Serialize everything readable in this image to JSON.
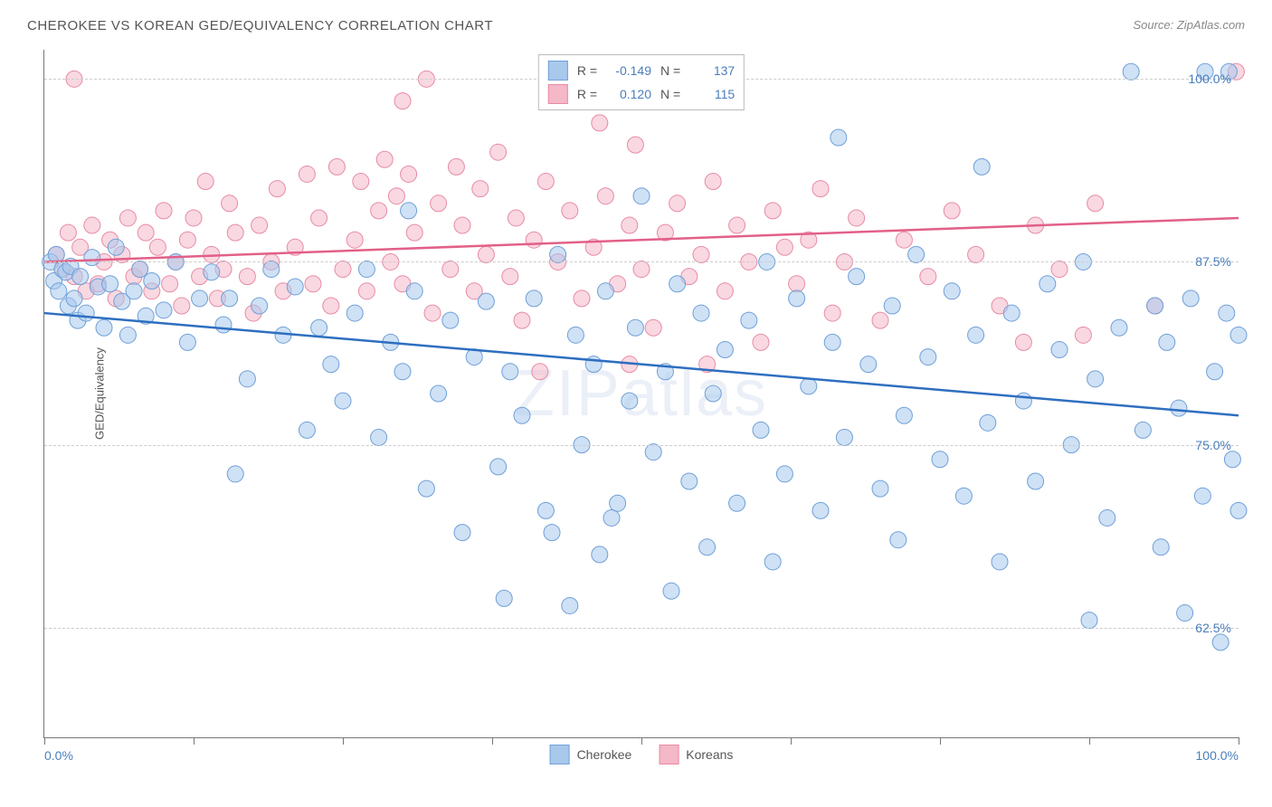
{
  "title": "CHEROKEE VS KOREAN GED/EQUIVALENCY CORRELATION CHART",
  "source": "Source: ZipAtlas.com",
  "ylabel": "GED/Equivalency",
  "watermark_a": "ZIP",
  "watermark_b": "atlas",
  "chart": {
    "type": "scatter",
    "background_color": "#ffffff",
    "grid_color": "#cccccc",
    "axis_color": "#777777",
    "xlim": [
      0,
      100
    ],
    "ylim": [
      55,
      102
    ],
    "x_ticks": [
      0,
      12.5,
      25,
      37.5,
      50,
      62.5,
      75,
      87.5,
      100
    ],
    "x_tick_labels": {
      "0": "0.0%",
      "100": "100.0%"
    },
    "y_gridlines": [
      62.5,
      75.0,
      87.5,
      100.0
    ],
    "y_tick_labels": [
      "62.5%",
      "75.0%",
      "87.5%",
      "100.0%"
    ],
    "marker_radius": 9,
    "marker_opacity": 0.55,
    "line_width": 2.5,
    "series": [
      {
        "name": "Cherokee",
        "color_fill": "#a8c8ec",
        "color_stroke": "#6fa0d8",
        "line_color": "#2e6fc0",
        "R": "-0.149",
        "N": "137",
        "trend": {
          "y_at_x0": 84.0,
          "y_at_x100": 77.0
        },
        "points": [
          [
            0.5,
            87.5
          ],
          [
            0.8,
            86.2
          ],
          [
            1.0,
            88.0
          ],
          [
            1.2,
            85.5
          ],
          [
            1.5,
            87.0
          ],
          [
            1.8,
            86.8
          ],
          [
            2.0,
            84.5
          ],
          [
            2.2,
            87.2
          ],
          [
            2.5,
            85.0
          ],
          [
            2.8,
            83.5
          ],
          [
            3.0,
            86.5
          ],
          [
            3.5,
            84.0
          ],
          [
            4.0,
            87.8
          ],
          [
            4.5,
            85.8
          ],
          [
            5.0,
            83.0
          ],
          [
            5.5,
            86.0
          ],
          [
            6.0,
            88.5
          ],
          [
            6.5,
            84.8
          ],
          [
            7.0,
            82.5
          ],
          [
            7.5,
            85.5
          ],
          [
            8.0,
            87.0
          ],
          [
            8.5,
            83.8
          ],
          [
            9.0,
            86.2
          ],
          [
            10.0,
            84.2
          ],
          [
            11.0,
            87.5
          ],
          [
            12.0,
            82.0
          ],
          [
            13.0,
            85.0
          ],
          [
            14.0,
            86.8
          ],
          [
            15.0,
            83.2
          ],
          [
            16.0,
            73.0
          ],
          [
            17.0,
            79.5
          ],
          [
            18.0,
            84.5
          ],
          [
            19.0,
            87.0
          ],
          [
            20.0,
            82.5
          ],
          [
            21.0,
            85.8
          ],
          [
            22.0,
            76.0
          ],
          [
            23.0,
            83.0
          ],
          [
            24.0,
            80.5
          ],
          [
            25.0,
            78.0
          ],
          [
            26.0,
            84.0
          ],
          [
            27.0,
            87.0
          ],
          [
            28.0,
            75.5
          ],
          [
            29.0,
            82.0
          ],
          [
            30.0,
            80.0
          ],
          [
            30.5,
            91.0
          ],
          [
            31.0,
            85.5
          ],
          [
            32.0,
            72.0
          ],
          [
            33.0,
            78.5
          ],
          [
            34.0,
            83.5
          ],
          [
            35.0,
            69.0
          ],
          [
            36.0,
            81.0
          ],
          [
            37.0,
            84.8
          ],
          [
            38.0,
            73.5
          ],
          [
            39.0,
            80.0
          ],
          [
            40.0,
            77.0
          ],
          [
            41.0,
            85.0
          ],
          [
            42.0,
            70.5
          ],
          [
            42.5,
            69.0
          ],
          [
            43.0,
            88.0
          ],
          [
            44.0,
            64.0
          ],
          [
            44.5,
            82.5
          ],
          [
            45.0,
            75.0
          ],
          [
            46.0,
            80.5
          ],
          [
            46.5,
            67.5
          ],
          [
            47.0,
            85.5
          ],
          [
            47.5,
            70.0
          ],
          [
            48.0,
            71.0
          ],
          [
            49.0,
            78.0
          ],
          [
            49.5,
            83.0
          ],
          [
            50.0,
            92.0
          ],
          [
            50.5,
            100.0
          ],
          [
            51.0,
            74.5
          ],
          [
            52.0,
            80.0
          ],
          [
            52.5,
            65.0
          ],
          [
            53.0,
            86.0
          ],
          [
            54.0,
            72.5
          ],
          [
            55.0,
            84.0
          ],
          [
            55.5,
            68.0
          ],
          [
            56.0,
            78.5
          ],
          [
            57.0,
            81.5
          ],
          [
            58.0,
            71.0
          ],
          [
            59.0,
            83.5
          ],
          [
            60.0,
            76.0
          ],
          [
            60.5,
            87.5
          ],
          [
            61.0,
            67.0
          ],
          [
            62.0,
            73.0
          ],
          [
            63.0,
            85.0
          ],
          [
            64.0,
            79.0
          ],
          [
            65.0,
            70.5
          ],
          [
            66.0,
            82.0
          ],
          [
            66.5,
            96.0
          ],
          [
            67.0,
            75.5
          ],
          [
            68.0,
            86.5
          ],
          [
            69.0,
            80.5
          ],
          [
            70.0,
            72.0
          ],
          [
            71.0,
            84.5
          ],
          [
            71.5,
            68.5
          ],
          [
            72.0,
            77.0
          ],
          [
            73.0,
            88.0
          ],
          [
            74.0,
            81.0
          ],
          [
            75.0,
            74.0
          ],
          [
            76.0,
            85.5
          ],
          [
            77.0,
            71.5
          ],
          [
            78.0,
            82.5
          ],
          [
            78.5,
            94.0
          ],
          [
            79.0,
            76.5
          ],
          [
            80.0,
            67.0
          ],
          [
            81.0,
            84.0
          ],
          [
            82.0,
            78.0
          ],
          [
            83.0,
            72.5
          ],
          [
            84.0,
            86.0
          ],
          [
            85.0,
            81.5
          ],
          [
            86.0,
            75.0
          ],
          [
            87.0,
            87.5
          ],
          [
            87.5,
            63.0
          ],
          [
            88.0,
            79.5
          ],
          [
            89.0,
            70.0
          ],
          [
            90.0,
            83.0
          ],
          [
            91.0,
            100.5
          ],
          [
            92.0,
            76.0
          ],
          [
            93.0,
            84.5
          ],
          [
            93.5,
            68.0
          ],
          [
            94.0,
            82.0
          ],
          [
            95.0,
            77.5
          ],
          [
            95.5,
            63.5
          ],
          [
            96.0,
            85.0
          ],
          [
            97.0,
            71.5
          ],
          [
            97.2,
            100.5
          ],
          [
            98.0,
            80.0
          ],
          [
            98.5,
            61.5
          ],
          [
            99.0,
            84.0
          ],
          [
            99.2,
            100.5
          ],
          [
            99.5,
            74.0
          ],
          [
            100.0,
            82.5
          ],
          [
            100.0,
            70.5
          ],
          [
            15.5,
            85.0
          ],
          [
            38.5,
            64.5
          ]
        ]
      },
      {
        "name": "Koreans",
        "color_fill": "#f4b8c8",
        "color_stroke": "#e88ba5",
        "line_color": "#e26088",
        "R": "0.120",
        "N": "115",
        "trend": {
          "y_at_x0": 87.5,
          "y_at_x100": 90.5
        },
        "points": [
          [
            1.0,
            88.0
          ],
          [
            1.5,
            87.0
          ],
          [
            2.0,
            89.5
          ],
          [
            2.5,
            86.5
          ],
          [
            3.0,
            88.5
          ],
          [
            3.5,
            85.5
          ],
          [
            4.0,
            90.0
          ],
          [
            4.5,
            86.0
          ],
          [
            5.0,
            87.5
          ],
          [
            5.5,
            89.0
          ],
          [
            6.0,
            85.0
          ],
          [
            6.5,
            88.0
          ],
          [
            7.0,
            90.5
          ],
          [
            7.5,
            86.5
          ],
          [
            8.0,
            87.0
          ],
          [
            8.5,
            89.5
          ],
          [
            9.0,
            85.5
          ],
          [
            9.5,
            88.5
          ],
          [
            10.0,
            91.0
          ],
          [
            10.5,
            86.0
          ],
          [
            11.0,
            87.5
          ],
          [
            11.5,
            84.5
          ],
          [
            12.0,
            89.0
          ],
          [
            12.5,
            90.5
          ],
          [
            13.0,
            86.5
          ],
          [
            13.5,
            93.0
          ],
          [
            14.0,
            88.0
          ],
          [
            14.5,
            85.0
          ],
          [
            15.0,
            87.0
          ],
          [
            15.5,
            91.5
          ],
          [
            16.0,
            89.5
          ],
          [
            17.0,
            86.5
          ],
          [
            17.5,
            84.0
          ],
          [
            18.0,
            90.0
          ],
          [
            19.0,
            87.5
          ],
          [
            19.5,
            92.5
          ],
          [
            20.0,
            85.5
          ],
          [
            21.0,
            88.5
          ],
          [
            22.0,
            93.5
          ],
          [
            22.5,
            86.0
          ],
          [
            23.0,
            90.5
          ],
          [
            24.0,
            84.5
          ],
          [
            24.5,
            94.0
          ],
          [
            25.0,
            87.0
          ],
          [
            26.0,
            89.0
          ],
          [
            26.5,
            93.0
          ],
          [
            27.0,
            85.5
          ],
          [
            28.0,
            91.0
          ],
          [
            28.5,
            94.5
          ],
          [
            29.0,
            87.5
          ],
          [
            29.5,
            92.0
          ],
          [
            30.0,
            86.0
          ],
          [
            30.5,
            93.5
          ],
          [
            31.0,
            89.5
          ],
          [
            32.0,
            100.0
          ],
          [
            32.5,
            84.0
          ],
          [
            33.0,
            91.5
          ],
          [
            34.0,
            87.0
          ],
          [
            34.5,
            94.0
          ],
          [
            35.0,
            90.0
          ],
          [
            36.0,
            85.5
          ],
          [
            36.5,
            92.5
          ],
          [
            37.0,
            88.0
          ],
          [
            38.0,
            95.0
          ],
          [
            39.0,
            86.5
          ],
          [
            39.5,
            90.5
          ],
          [
            40.0,
            83.5
          ],
          [
            41.0,
            89.0
          ],
          [
            42.0,
            93.0
          ],
          [
            43.0,
            87.5
          ],
          [
            44.0,
            91.0
          ],
          [
            45.0,
            85.0
          ],
          [
            46.0,
            88.5
          ],
          [
            46.5,
            97.0
          ],
          [
            47.0,
            92.0
          ],
          [
            48.0,
            86.0
          ],
          [
            49.0,
            90.0
          ],
          [
            49.5,
            95.5
          ],
          [
            50.0,
            87.0
          ],
          [
            51.0,
            83.0
          ],
          [
            52.0,
            89.5
          ],
          [
            53.0,
            91.5
          ],
          [
            54.0,
            86.5
          ],
          [
            55.0,
            88.0
          ],
          [
            55.5,
            80.5
          ],
          [
            56.0,
            93.0
          ],
          [
            57.0,
            85.5
          ],
          [
            58.0,
            90.0
          ],
          [
            59.0,
            87.5
          ],
          [
            60.0,
            82.0
          ],
          [
            61.0,
            91.0
          ],
          [
            62.0,
            88.5
          ],
          [
            63.0,
            86.0
          ],
          [
            64.0,
            89.0
          ],
          [
            65.0,
            92.5
          ],
          [
            66.0,
            84.0
          ],
          [
            67.0,
            87.5
          ],
          [
            68.0,
            90.5
          ],
          [
            70.0,
            83.5
          ],
          [
            72.0,
            89.0
          ],
          [
            74.0,
            86.5
          ],
          [
            76.0,
            91.0
          ],
          [
            78.0,
            88.0
          ],
          [
            80.0,
            84.5
          ],
          [
            82.0,
            82.0
          ],
          [
            83.0,
            90.0
          ],
          [
            85.0,
            87.0
          ],
          [
            87.0,
            82.5
          ],
          [
            88.0,
            91.5
          ],
          [
            93.0,
            84.5
          ],
          [
            99.8,
            100.5
          ],
          [
            30.0,
            98.5
          ],
          [
            41.5,
            80.0
          ],
          [
            49.0,
            80.5
          ],
          [
            2.5,
            100.0
          ]
        ]
      }
    ]
  },
  "legend_bottom": [
    "Cherokee",
    "Koreans"
  ]
}
